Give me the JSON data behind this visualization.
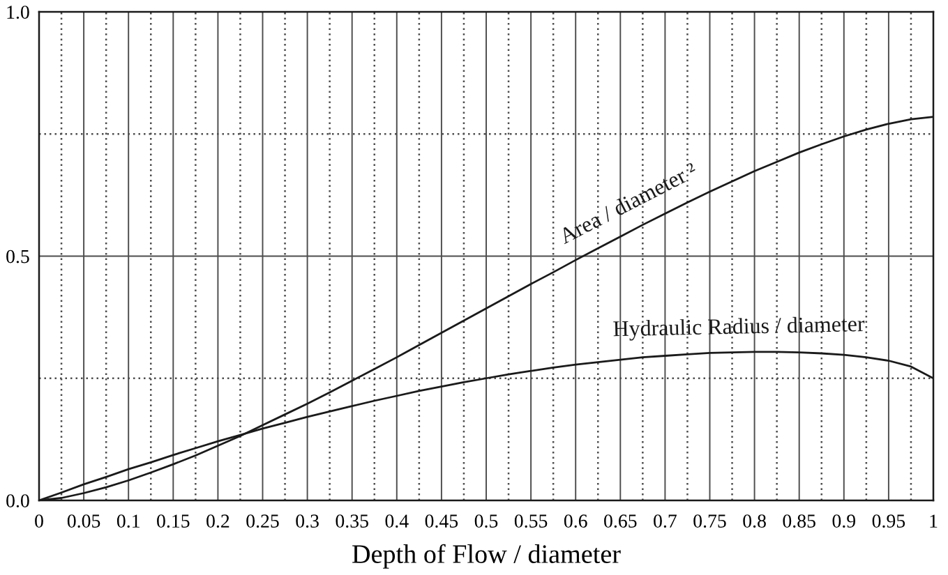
{
  "chart_data": {
    "type": "line",
    "xlabel": "Depth of Flow / diameter",
    "x": [
      0,
      0.025,
      0.05,
      0.075,
      0.1,
      0.125,
      0.15,
      0.175,
      0.2,
      0.225,
      0.25,
      0.275,
      0.3,
      0.325,
      0.35,
      0.375,
      0.4,
      0.425,
      0.45,
      0.475,
      0.5,
      0.525,
      0.55,
      0.575,
      0.6,
      0.625,
      0.65,
      0.675,
      0.7,
      0.725,
      0.75,
      0.775,
      0.8,
      0.825,
      0.85,
      0.875,
      0.9,
      0.925,
      0.95,
      0.975,
      1
    ],
    "series": [
      {
        "color": "#1a1a1a",
        "values": [
          0,
          0.005,
          0.015,
          0.027,
          0.041,
          0.057,
          0.074,
          0.092,
          0.112,
          0.132,
          0.154,
          0.176,
          0.198,
          0.221,
          0.245,
          0.269,
          0.293,
          0.318,
          0.343,
          0.368,
          0.393,
          0.418,
          0.443,
          0.467,
          0.492,
          0.516,
          0.54,
          0.564,
          0.587,
          0.61,
          0.632,
          0.653,
          0.674,
          0.693,
          0.712,
          0.729,
          0.745,
          0.759,
          0.771,
          0.78,
          0.785
        ]
      },
      {
        "color": "#1a1a1a",
        "values": [
          0,
          0.016,
          0.033,
          0.048,
          0.064,
          0.078,
          0.093,
          0.107,
          0.121,
          0.134,
          0.147,
          0.159,
          0.171,
          0.182,
          0.193,
          0.204,
          0.214,
          0.224,
          0.233,
          0.242,
          0.25,
          0.258,
          0.265,
          0.272,
          0.278,
          0.283,
          0.288,
          0.293,
          0.296,
          0.299,
          0.302,
          0.303,
          0.304,
          0.304,
          0.303,
          0.301,
          0.298,
          0.293,
          0.286,
          0.274,
          0.25
        ]
      }
    ],
    "annotations": [
      {
        "text": "Area / diameter ²",
        "x": 0.672,
        "y": 0.561
      },
      {
        "text": "Hydraulic Radius / diameter",
        "x": 0.783,
        "y": 0.303
      }
    ],
    "xlim": [
      0,
      1
    ],
    "ylim": [
      0,
      1
    ],
    "xticks": [
      0,
      {
        "value": 0.025,
        "label": null
      },
      0.05,
      {
        "value": 0.075,
        "label": null
      },
      0.1,
      {
        "value": 0.125,
        "label": null
      },
      0.15,
      {
        "value": 0.175,
        "label": null
      },
      0.2,
      {
        "value": 0.225,
        "label": null
      },
      0.25,
      {
        "value": 0.275,
        "label": null
      },
      0.3,
      {
        "value": 0.325,
        "label": null
      },
      0.35,
      {
        "value": 0.375,
        "label": null
      },
      0.4,
      {
        "value": 0.425,
        "label": null
      },
      0.45,
      {
        "value": 0.475,
        "label": null
      },
      0.5,
      {
        "value": 0.525,
        "label": null
      },
      0.55,
      {
        "value": 0.575,
        "label": null
      },
      0.6,
      {
        "value": 0.625,
        "label": null
      },
      0.65,
      {
        "value": 0.675,
        "label": null
      },
      0.7,
      {
        "value": 0.725,
        "label": null
      },
      0.75,
      {
        "value": 0.775,
        "label": null
      },
      0.8,
      {
        "value": 0.825,
        "label": null
      },
      0.85,
      {
        "value": 0.875,
        "label": null
      },
      0.9,
      {
        "value": 0.925,
        "label": null
      },
      0.95,
      {
        "value": 0.975,
        "label": null
      },
      1
    ],
    "yticks": [
      {
        "value": 0,
        "label": "0.0"
      },
      {
        "value": 0.25,
        "label": null
      },
      0.5,
      {
        "value": 0.75,
        "label": null
      },
      {
        "value": 1,
        "label": "1.0"
      }
    ],
    "grid": true
  }
}
